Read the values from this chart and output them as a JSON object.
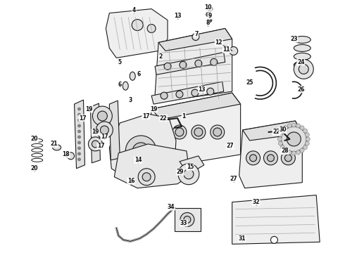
{
  "figsize": [
    4.9,
    3.6
  ],
  "dpi": 100,
  "bg": "#ffffff",
  "lc": "#1a1a1a",
  "labels": [
    [
      "4",
      190,
      14
    ],
    [
      "5",
      170,
      88
    ],
    [
      "6",
      197,
      105
    ],
    [
      "6",
      170,
      120
    ],
    [
      "2",
      228,
      80
    ],
    [
      "13",
      252,
      22
    ],
    [
      "10",
      296,
      10
    ],
    [
      "9",
      298,
      22
    ],
    [
      "8",
      295,
      32
    ],
    [
      "7",
      279,
      48
    ],
    [
      "12",
      311,
      60
    ],
    [
      "11",
      322,
      70
    ],
    [
      "23",
      418,
      55
    ],
    [
      "24",
      428,
      88
    ],
    [
      "25",
      355,
      117
    ],
    [
      "26",
      428,
      127
    ],
    [
      "13",
      287,
      127
    ],
    [
      "3",
      185,
      142
    ],
    [
      "1",
      261,
      165
    ],
    [
      "19",
      218,
      155
    ],
    [
      "17",
      207,
      165
    ],
    [
      "22",
      232,
      168
    ],
    [
      "19",
      126,
      155
    ],
    [
      "17",
      117,
      168
    ],
    [
      "19",
      135,
      188
    ],
    [
      "17",
      148,
      195
    ],
    [
      "17",
      143,
      208
    ],
    [
      "22",
      393,
      188
    ],
    [
      "20",
      48,
      198
    ],
    [
      "21",
      76,
      205
    ],
    [
      "18",
      93,
      220
    ],
    [
      "20",
      48,
      240
    ],
    [
      "14",
      196,
      228
    ],
    [
      "15",
      270,
      238
    ],
    [
      "16",
      186,
      258
    ],
    [
      "27",
      327,
      208
    ],
    [
      "28",
      405,
      215
    ],
    [
      "30",
      402,
      185
    ],
    [
      "27",
      332,
      255
    ],
    [
      "29",
      256,
      245
    ],
    [
      "34",
      243,
      295
    ],
    [
      "33",
      261,
      318
    ],
    [
      "32",
      364,
      288
    ],
    [
      "31",
      344,
      340
    ]
  ]
}
